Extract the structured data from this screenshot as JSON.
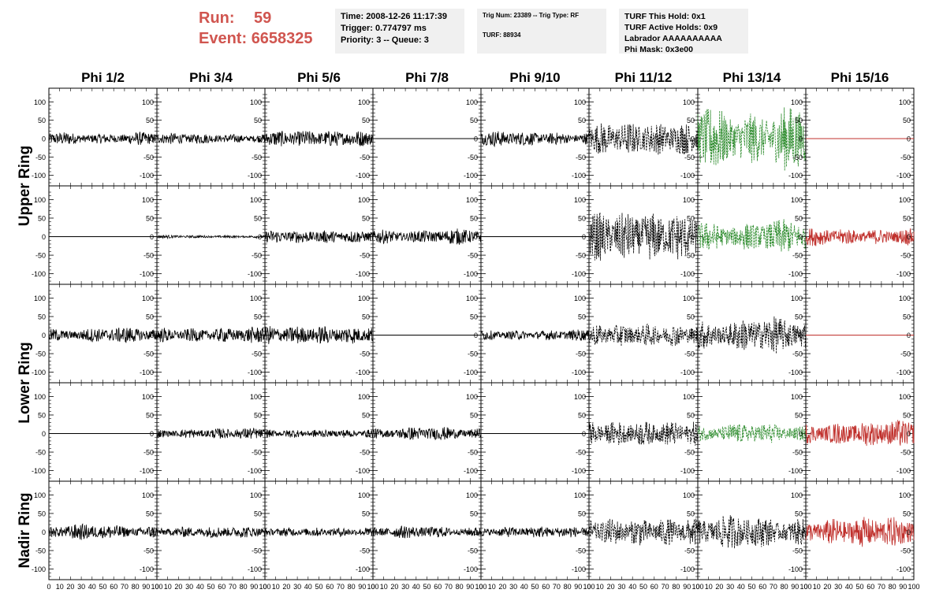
{
  "header": {
    "run_label": "Run:",
    "run_value": "59",
    "event_label": "Event:",
    "event_value": "6658325",
    "time": "Time: 2008-12-26 11:17:39",
    "trigger": "Trigger: 0.774797 ms",
    "priority": "Priority: 3 -- Queue: 3",
    "trig_num": "Trig Num: 23389 -- Trig Type: RF",
    "turf": "TURF: 88934",
    "turf_this_hold": "TURF This Hold: 0x1",
    "turf_active_holds": "TURF Active Holds: 0x9",
    "labrador": "Labrador AAAAAAAAAA",
    "phi_mask": "Phi Mask: 0x3e00"
  },
  "chart_data": {
    "type": "line",
    "columns": [
      "Phi 1/2",
      "Phi 3/4",
      "Phi 5/6",
      "Phi 7/8",
      "Phi 9/10",
      "Phi 11/12",
      "Phi 13/14",
      "Phi 15/16"
    ],
    "row_labels": [
      {
        "text": "Upper Ring",
        "rows": [
          0,
          1
        ]
      },
      {
        "text": "Lower Ring",
        "rows": [
          2,
          3
        ]
      },
      {
        "text": "Nadir Ring",
        "rows": [
          4
        ]
      }
    ],
    "xlim": [
      0,
      100
    ],
    "ylim": [
      -120,
      120
    ],
    "x_ticks": [
      0,
      10,
      20,
      30,
      40,
      50,
      60,
      70,
      80,
      90,
      100
    ],
    "y_ticks": [
      -100,
      -50,
      0,
      50,
      100
    ],
    "colors": {
      "black": "#000000",
      "green": "#2a8a2a",
      "red": "#c0302c"
    },
    "panels": [
      [
        {
          "color": "black",
          "style": "solid",
          "amp": 12,
          "flat": false
        },
        {
          "color": "black",
          "style": "solid",
          "amp": 10,
          "flat": false
        },
        {
          "color": "black",
          "style": "solid",
          "amp": 14,
          "flat": false
        },
        {
          "color": "black",
          "style": "solid",
          "amp": 0,
          "flat": true
        },
        {
          "color": "black",
          "style": "solid",
          "amp": 14,
          "flat": false
        },
        {
          "color": "black",
          "style": "dashed",
          "amp": 28,
          "flat": false
        },
        {
          "color": "green",
          "style": "dashed",
          "amp": 60,
          "flat": false
        },
        {
          "color": "red",
          "style": "solid",
          "amp": 0,
          "flat": true
        }
      ],
      [
        {
          "color": "black",
          "style": "solid",
          "amp": 0,
          "flat": true
        },
        {
          "color": "black",
          "style": "solid",
          "amp": 3,
          "flat": false
        },
        {
          "color": "black",
          "style": "solid",
          "amp": 12,
          "flat": false
        },
        {
          "color": "black",
          "style": "solid",
          "amp": 14,
          "flat": false
        },
        {
          "color": "black",
          "style": "solid",
          "amp": 0,
          "flat": true
        },
        {
          "color": "black",
          "style": "dashed",
          "amp": 45,
          "flat": false
        },
        {
          "color": "green",
          "style": "dashed",
          "amp": 30,
          "flat": false
        },
        {
          "color": "red",
          "style": "solid",
          "amp": 18,
          "flat": false
        }
      ],
      [
        {
          "color": "black",
          "style": "solid",
          "amp": 14,
          "flat": false
        },
        {
          "color": "black",
          "style": "solid",
          "amp": 16,
          "flat": false
        },
        {
          "color": "black",
          "style": "solid",
          "amp": 20,
          "flat": false
        },
        {
          "color": "black",
          "style": "solid",
          "amp": 0,
          "flat": true
        },
        {
          "color": "black",
          "style": "solid",
          "amp": 11,
          "flat": false
        },
        {
          "color": "black",
          "style": "dashed",
          "amp": 24,
          "flat": false
        },
        {
          "color": "black",
          "style": "dashed",
          "amp": 32,
          "flat": false
        },
        {
          "color": "red",
          "style": "solid",
          "amp": 0,
          "flat": true
        }
      ],
      [
        {
          "color": "black",
          "style": "solid",
          "amp": 0,
          "flat": true
        },
        {
          "color": "black",
          "style": "solid",
          "amp": 10,
          "flat": false
        },
        {
          "color": "black",
          "style": "solid",
          "amp": 10,
          "flat": false
        },
        {
          "color": "black",
          "style": "solid",
          "amp": 12,
          "flat": false
        },
        {
          "color": "black",
          "style": "solid",
          "amp": 0,
          "flat": true
        },
        {
          "color": "black",
          "style": "dashed",
          "amp": 30,
          "flat": false
        },
        {
          "color": "green",
          "style": "dashed",
          "amp": 18,
          "flat": false
        },
        {
          "color": "red",
          "style": "solid",
          "amp": 24,
          "flat": false
        }
      ],
      [
        {
          "color": "black",
          "style": "solid",
          "amp": 14,
          "flat": false
        },
        {
          "color": "black",
          "style": "solid",
          "amp": 10,
          "flat": false
        },
        {
          "color": "black",
          "style": "solid",
          "amp": 10,
          "flat": false
        },
        {
          "color": "black",
          "style": "solid",
          "amp": 11,
          "flat": false
        },
        {
          "color": "black",
          "style": "solid",
          "amp": 10,
          "flat": false
        },
        {
          "color": "black",
          "style": "dashed",
          "amp": 30,
          "flat": false
        },
        {
          "color": "black",
          "style": "dashed",
          "amp": 30,
          "flat": false
        },
        {
          "color": "red",
          "style": "solid",
          "amp": 26,
          "flat": false
        }
      ]
    ]
  }
}
